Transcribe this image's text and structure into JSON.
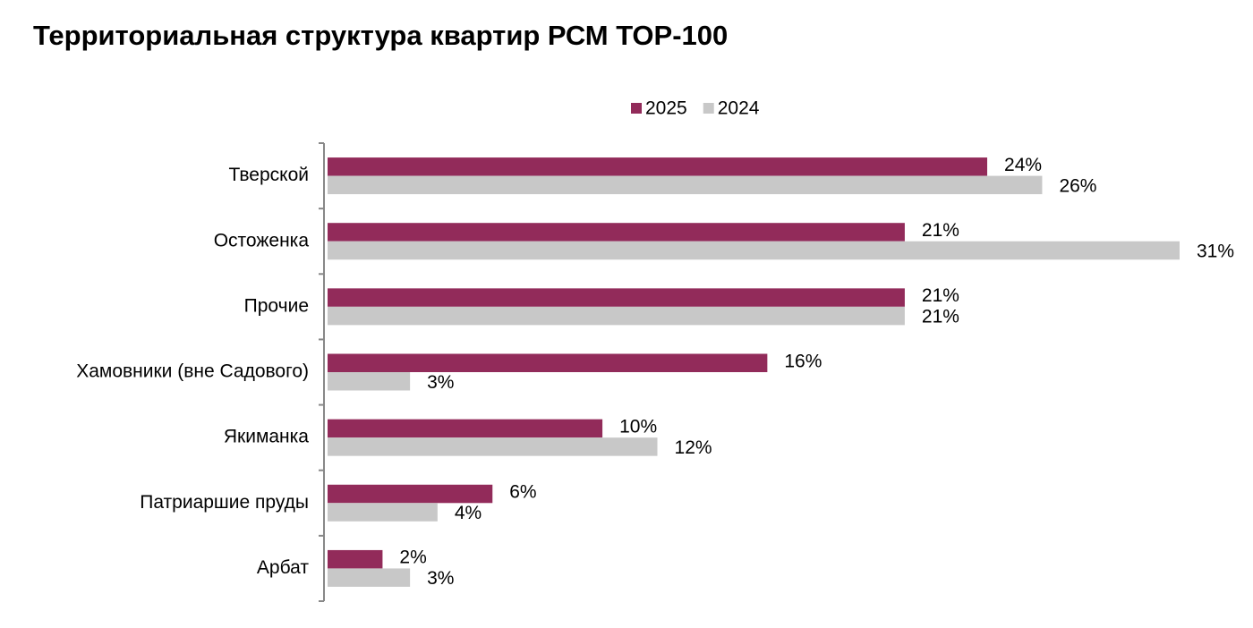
{
  "chart_data": {
    "type": "bar",
    "orientation": "horizontal",
    "title": "Территориальная структура квартир РСМ ТОР-100",
    "categories": [
      "Тверской",
      "Остоженка",
      "Прочие",
      "Хамовники (вне Садового)",
      "Якиманка",
      "Патриаршие пруды",
      "Арбат"
    ],
    "series": [
      {
        "name": "2025",
        "color": "#922b5a",
        "values": [
          24,
          21,
          21,
          16,
          10,
          6,
          2
        ],
        "value_labels": [
          "24%",
          "21%",
          "21%",
          "16%",
          "10%",
          "6%",
          "2%"
        ]
      },
      {
        "name": "2024",
        "color": "#c8c8c8",
        "values": [
          26,
          31,
          21,
          3,
          12,
          4,
          3
        ],
        "value_labels": [
          "26%",
          "31%",
          "21%",
          "3%",
          "12%",
          "4%",
          "3%"
        ]
      }
    ],
    "legend": "top"
  }
}
